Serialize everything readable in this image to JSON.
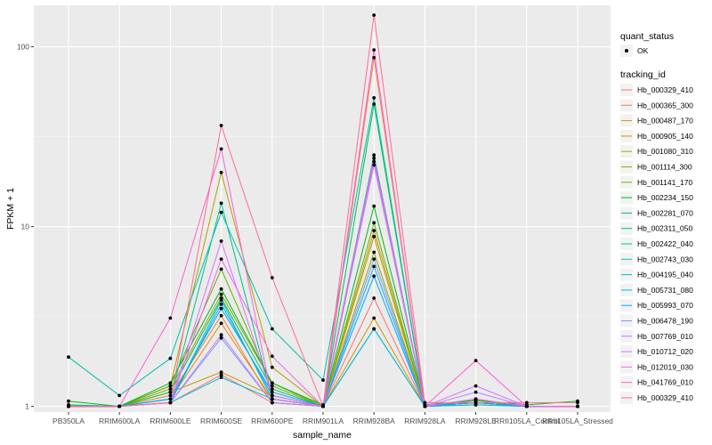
{
  "chart_data": {
    "type": "line",
    "xlabel": "sample_name",
    "ylabel": "FPKM + 1",
    "y_scale": "log10",
    "ylim": [
      0.93,
      170
    ],
    "y_ticks": [
      1,
      10,
      100
    ],
    "y_tick_labels": [
      "1",
      "10",
      "100"
    ],
    "categories": [
      "PB350LA",
      "RRIM600LA",
      "RRIM600LE",
      "RRIM600SE",
      "RRIM600PE",
      "RRIM901LA",
      "RRIM928BA",
      "RRIM928LA",
      "RRIM928LE",
      "RRII105LA_Control",
      "RRII105LA_Stressed"
    ],
    "grid": true,
    "legend_position": "right",
    "point_legend": {
      "title": "quant_status",
      "entries": [
        "OK"
      ]
    },
    "legend_title": "tracking_id",
    "series": [
      {
        "name": "Hb_000329_410",
        "color": "#F8766D",
        "values": [
          1.01,
          1.0,
          1.05,
          1.5,
          1.05,
          1.0,
          4.0,
          1.0,
          1.05,
          1.0,
          1.0
        ]
      },
      {
        "name": "Hb_000365_300",
        "color": "#EC8239",
        "values": [
          1.0,
          1.0,
          1.15,
          3.2,
          1.05,
          1.0,
          87.0,
          1.0,
          1.05,
          1.0,
          1.0
        ]
      },
      {
        "name": "Hb_000487_170",
        "color": "#DB8E00",
        "values": [
          1.0,
          1.0,
          1.1,
          2.9,
          1.1,
          1.0,
          3.1,
          1.0,
          1.05,
          1.0,
          1.0
        ]
      },
      {
        "name": "Hb_000905_140",
        "color": "#C79800",
        "values": [
          1.0,
          1.0,
          1.2,
          1.55,
          1.15,
          1.0,
          9.5,
          1.0,
          1.05,
          1.0,
          1.0
        ]
      },
      {
        "name": "Hb_001080_310",
        "color": "#AEA200",
        "values": [
          1.01,
          1.0,
          1.3,
          20.0,
          1.65,
          1.0,
          8.8,
          1.0,
          1.05,
          1.0,
          1.0
        ]
      },
      {
        "name": "Hb_001114_300",
        "color": "#8FAA00",
        "values": [
          1.0,
          1.0,
          1.25,
          4.2,
          1.35,
          1.0,
          7.2,
          1.0,
          1.08,
          1.0,
          1.0
        ]
      },
      {
        "name": "Hb_001141_170",
        "color": "#64B200",
        "values": [
          1.0,
          1.0,
          1.3,
          5.8,
          1.3,
          1.0,
          10.5,
          1.0,
          1.08,
          1.0,
          1.0
        ]
      },
      {
        "name": "Hb_002234_150",
        "color": "#00B81B",
        "values": [
          1.07,
          1.0,
          1.35,
          4.5,
          1.35,
          1.02,
          13.0,
          1.02,
          1.08,
          1.02,
          1.07
        ]
      },
      {
        "name": "Hb_002281_070",
        "color": "#00BD5C",
        "values": [
          1.0,
          1.0,
          1.2,
          4.0,
          1.25,
          1.0,
          48.0,
          1.0,
          1.05,
          1.0,
          1.0
        ]
      },
      {
        "name": "Hb_002311_050",
        "color": "#00C085",
        "values": [
          1.02,
          1.0,
          1.1,
          13.5,
          1.1,
          1.0,
          25.0,
          1.0,
          1.05,
          1.0,
          1.0
        ]
      },
      {
        "name": "Hb_002422_040",
        "color": "#00C1A7",
        "values": [
          1.88,
          1.15,
          1.85,
          12.0,
          2.7,
          1.4,
          52.0,
          1.0,
          1.05,
          1.0,
          1.0
        ]
      },
      {
        "name": "Hb_002743_030",
        "color": "#00BFC4",
        "values": [
          1.0,
          1.0,
          1.05,
          3.9,
          1.1,
          1.0,
          2.7,
          1.0,
          1.02,
          1.0,
          1.0
        ]
      },
      {
        "name": "Hb_004195_040",
        "color": "#00BADE",
        "values": [
          1.0,
          1.0,
          1.05,
          1.45,
          1.1,
          1.0,
          2.7,
          1.0,
          1.02,
          1.0,
          1.0
        ]
      },
      {
        "name": "Hb_005731_080",
        "color": "#00B2F3",
        "values": [
          1.0,
          1.0,
          1.05,
          3.7,
          1.15,
          1.0,
          6.0,
          1.0,
          1.05,
          1.0,
          1.0
        ]
      },
      {
        "name": "Hb_005993_070",
        "color": "#00A6FF",
        "values": [
          1.0,
          1.0,
          1.1,
          3.5,
          1.2,
          1.0,
          5.3,
          1.0,
          1.05,
          1.0,
          1.0
        ]
      },
      {
        "name": "Hb_006478_190",
        "color": "#7C96FF",
        "values": [
          1.0,
          1.0,
          1.05,
          2.4,
          1.05,
          1.0,
          6.6,
          1.0,
          1.1,
          1.0,
          1.0
        ]
      },
      {
        "name": "Hb_007769_010",
        "color": "#B385FF",
        "values": [
          1.0,
          1.0,
          1.05,
          2.5,
          1.05,
          1.0,
          22.0,
          1.0,
          1.2,
          1.0,
          1.0
        ]
      },
      {
        "name": "Hb_010712_020",
        "color": "#D874FD",
        "values": [
          1.0,
          1.0,
          1.05,
          8.3,
          1.15,
          1.0,
          23.0,
          1.0,
          1.3,
          1.0,
          1.0
        ]
      },
      {
        "name": "Hb_012019_030",
        "color": "#EF67EB",
        "values": [
          1.0,
          1.0,
          1.05,
          6.6,
          1.9,
          1.0,
          24.0,
          1.0,
          1.1,
          1.0,
          1.0
        ]
      },
      {
        "name": "Hb_041769_010",
        "color": "#FD61D3",
        "values": [
          1.0,
          1.0,
          3.1,
          27.0,
          1.1,
          1.0,
          96.0,
          1.0,
          1.8,
          1.0,
          1.0
        ]
      },
      {
        "name": "Hb_000329_410",
        "color": "#FF6C91",
        "values": [
          1.0,
          1.0,
          1.05,
          36.5,
          5.2,
          1.0,
          150.0,
          1.05,
          1.05,
          1.05,
          1.05
        ]
      }
    ]
  }
}
